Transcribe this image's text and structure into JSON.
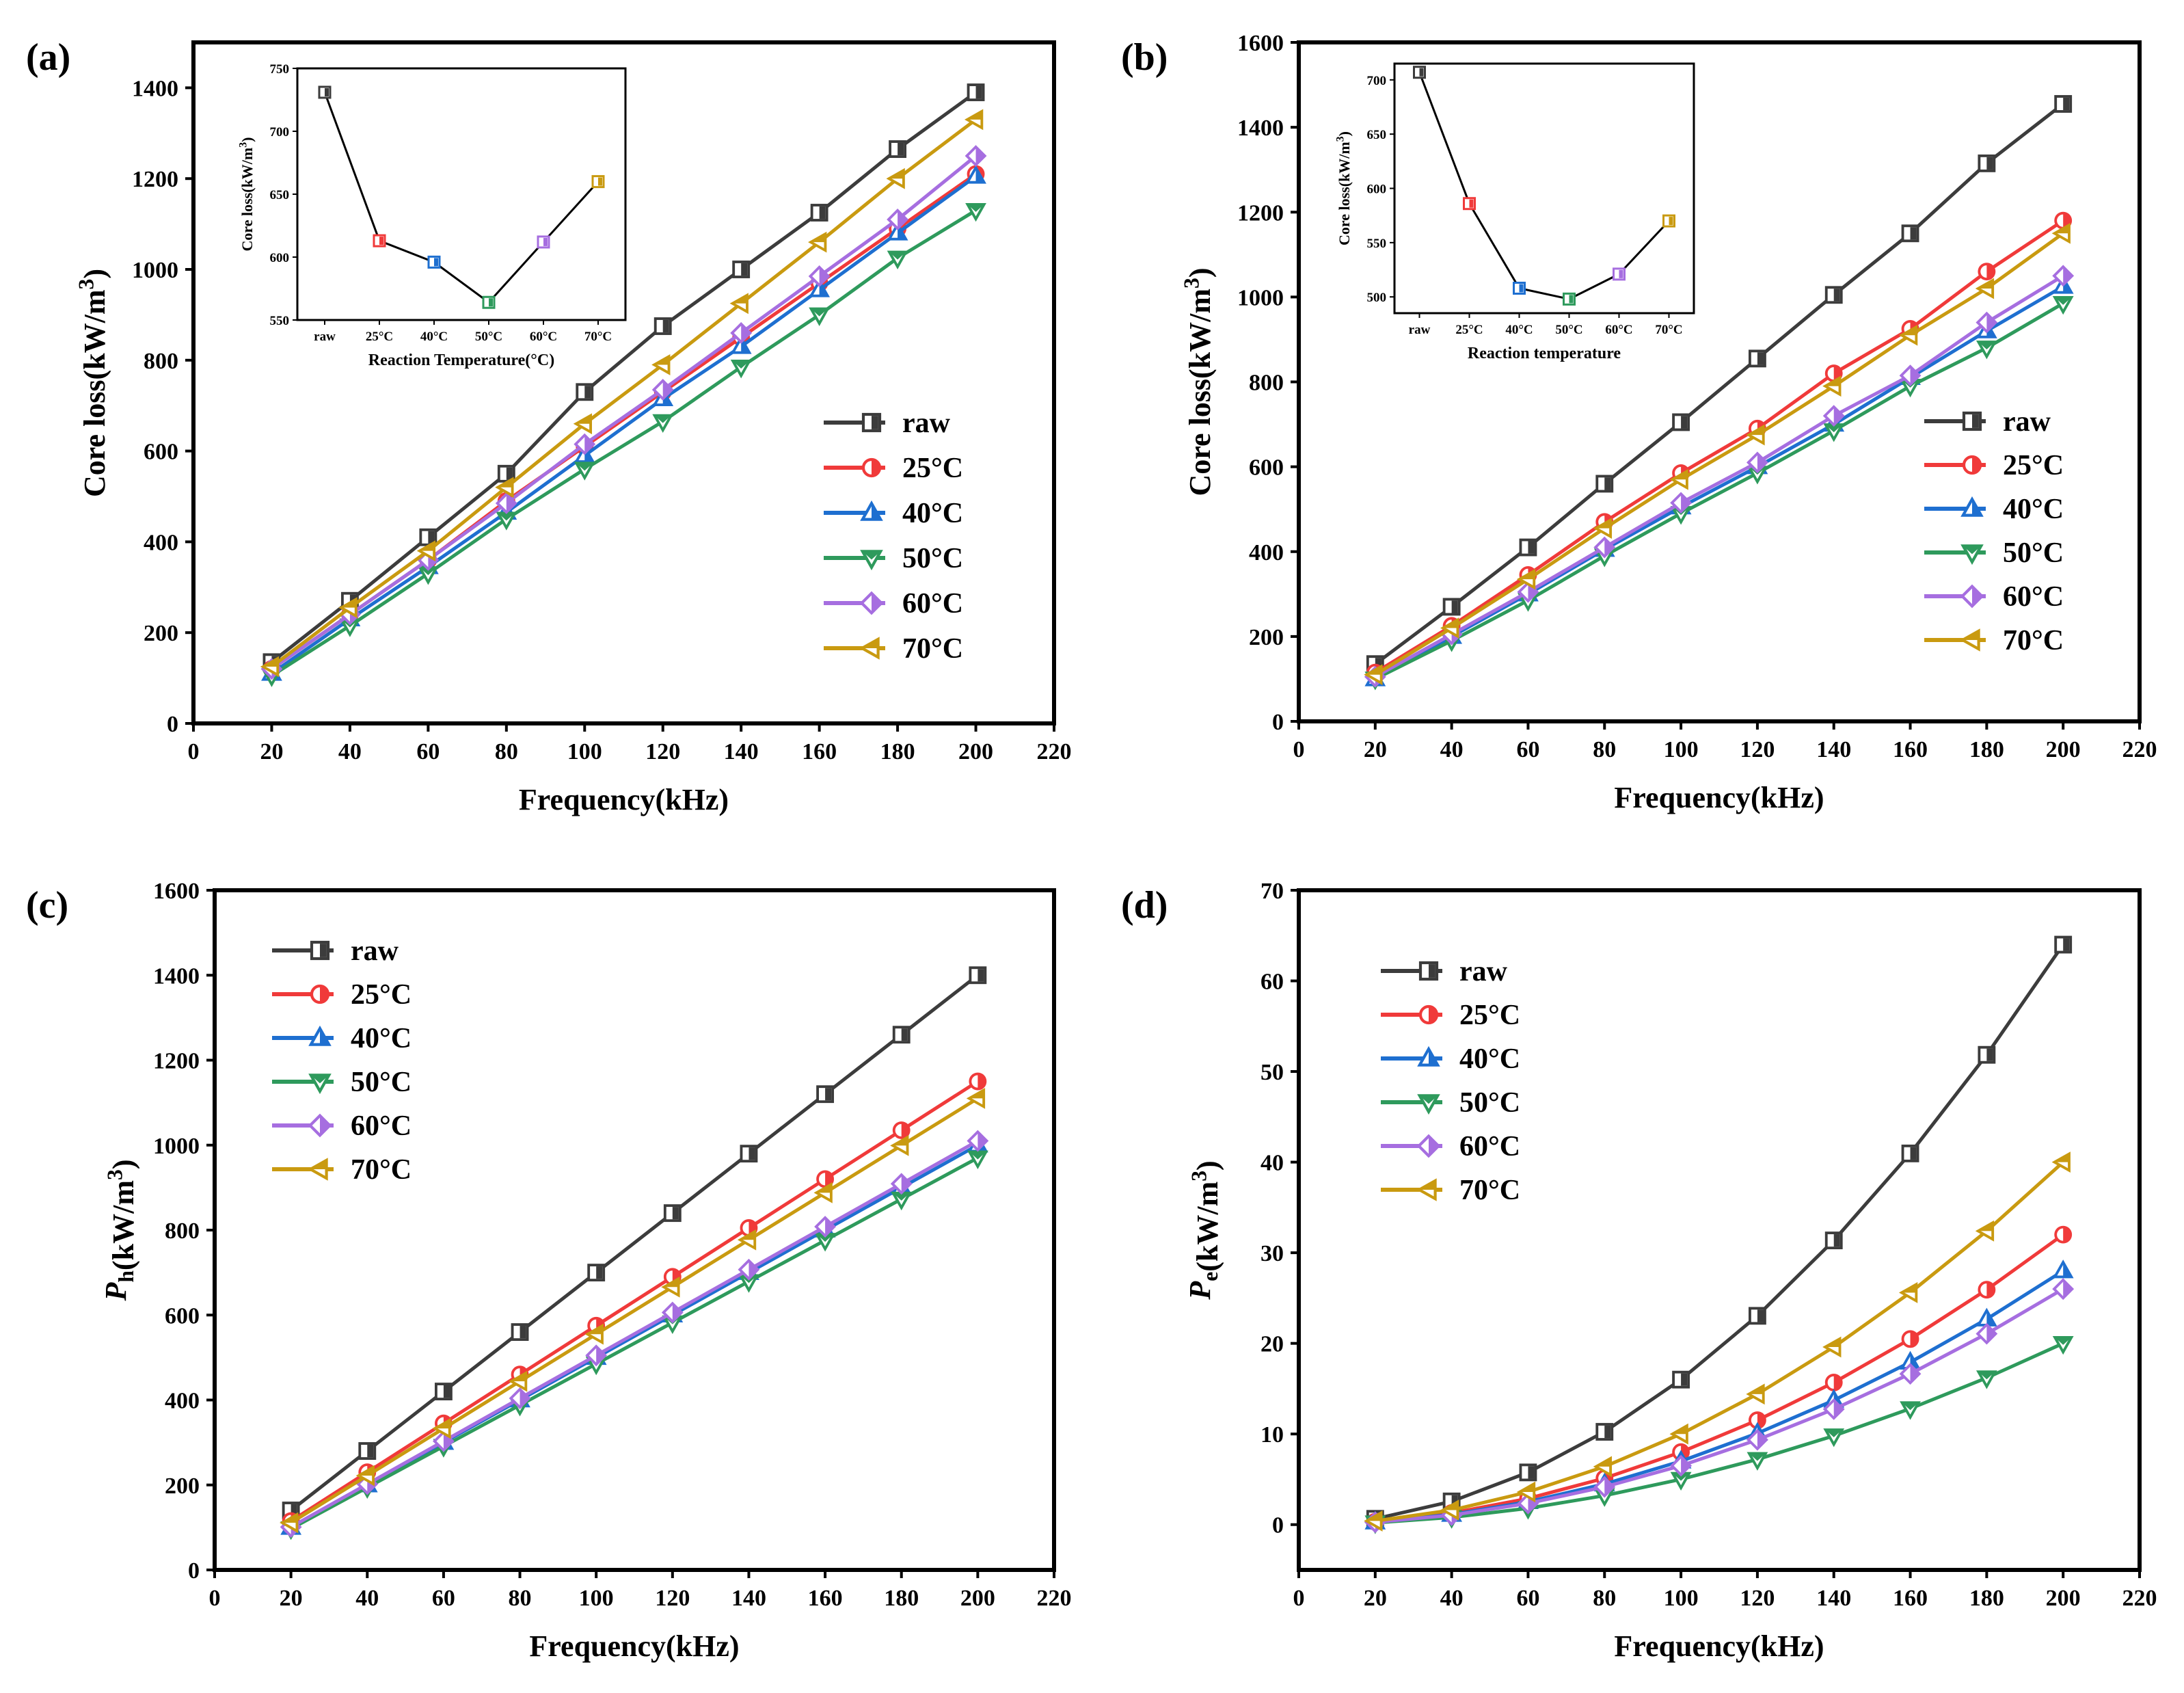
{
  "figure": {
    "series_styles": [
      {
        "name": "raw",
        "color": "#3c3c3c",
        "marker": "square"
      },
      {
        "name": "25°C",
        "color": "#f03a3a",
        "marker": "circle"
      },
      {
        "name": "40°C",
        "color": "#1e6fd0",
        "marker": "triangle-up"
      },
      {
        "name": "50°C",
        "color": "#2e9a5c",
        "marker": "triangle-down"
      },
      {
        "name": "60°C",
        "color": "#a66ee0",
        "marker": "diamond"
      },
      {
        "name": "70°C",
        "color": "#c99a10",
        "marker": "triangle-left"
      }
    ]
  },
  "chart_data": [
    {
      "panel_label": "(a)",
      "type": "line",
      "xlabel": "Frequency(kHz)",
      "ylabel": "Core loss(kW/m3)",
      "xlim": [
        0,
        220
      ],
      "ylim": [
        0,
        1500
      ],
      "x_ticks": [
        "0",
        "20",
        "40",
        "60",
        "80",
        "100",
        "120",
        "140",
        "160",
        "180",
        "200",
        "220"
      ],
      "y_ticks": [
        "0",
        "200",
        "400",
        "600",
        "800",
        "1000",
        "1200",
        "1400"
      ],
      "legend_position": "lower-right",
      "x": [
        20,
        40,
        60,
        80,
        100,
        120,
        140,
        160,
        180,
        200
      ],
      "series": [
        {
          "name": "raw",
          "values": [
            135,
            270,
            410,
            550,
            730,
            875,
            1000,
            1125,
            1265,
            1390
          ]
        },
        {
          "name": "25°C",
          "values": [
            120,
            240,
            360,
            490,
            610,
            730,
            850,
            970,
            1090,
            1210
          ]
        },
        {
          "name": "40°C",
          "values": [
            110,
            230,
            345,
            465,
            590,
            715,
            830,
            955,
            1080,
            1205
          ]
        },
        {
          "name": "50°C",
          "values": [
            105,
            215,
            330,
            450,
            560,
            665,
            785,
            900,
            1025,
            1130
          ]
        },
        {
          "name": "60°C",
          "values": [
            120,
            240,
            360,
            485,
            615,
            735,
            860,
            985,
            1110,
            1250
          ]
        },
        {
          "name": "70°C",
          "values": [
            125,
            255,
            380,
            520,
            660,
            790,
            925,
            1060,
            1200,
            1330
          ]
        }
      ],
      "inset": {
        "type": "line",
        "xlabel": "Reaction Temperature(°C)",
        "ylabel": "Core loss(kW/m3)",
        "categories": [
          "raw",
          "25°C",
          "40°C",
          "50°C",
          "60°C",
          "70°C"
        ],
        "values": [
          731,
          613,
          596,
          564,
          612,
          660
        ],
        "ylim": [
          550,
          750
        ],
        "y_ticks": [
          "550",
          "600",
          "650",
          "700",
          "750"
        ]
      }
    },
    {
      "panel_label": "(b)",
      "type": "line",
      "xlabel": "Frequency(kHz)",
      "ylabel": "Core loss(kW/m3)",
      "xlim": [
        0,
        220
      ],
      "ylim": [
        0,
        1600
      ],
      "x_ticks": [
        "0",
        "20",
        "40",
        "60",
        "80",
        "100",
        "120",
        "140",
        "160",
        "180",
        "200",
        "220"
      ],
      "y_ticks": [
        "0",
        "200",
        "400",
        "600",
        "800",
        "1000",
        "1200",
        "1400",
        "1600"
      ],
      "legend_position": "right",
      "x": [
        20,
        40,
        60,
        80,
        100,
        120,
        140,
        160,
        180,
        200
      ],
      "series": [
        {
          "name": "raw",
          "values": [
            135,
            270,
            410,
            560,
            705,
            855,
            1005,
            1150,
            1315,
            1455
          ]
        },
        {
          "name": "25°C",
          "values": [
            115,
            225,
            345,
            470,
            585,
            690,
            820,
            925,
            1060,
            1180
          ]
        },
        {
          "name": "40°C",
          "values": [
            100,
            200,
            300,
            405,
            505,
            600,
            700,
            810,
            920,
            1025
          ]
        },
        {
          "name": "50°C",
          "values": [
            100,
            190,
            285,
            390,
            490,
            585,
            685,
            790,
            880,
            985
          ]
        },
        {
          "name": "60°C",
          "values": [
            105,
            205,
            305,
            410,
            515,
            610,
            720,
            815,
            940,
            1050
          ]
        },
        {
          "name": "70°C",
          "values": [
            110,
            220,
            335,
            455,
            570,
            675,
            790,
            910,
            1020,
            1150
          ]
        }
      ],
      "inset": {
        "type": "line",
        "xlabel": "Reaction temperature",
        "ylabel": "Core loss(kW/m3)",
        "categories": [
          "raw",
          "25°C",
          "40°C",
          "50°C",
          "60°C",
          "70°C"
        ],
        "values": [
          707,
          586,
          508,
          498,
          521,
          570
        ],
        "ylim": [
          485,
          715
        ],
        "y_ticks": [
          "500",
          "550",
          "600",
          "650",
          "700"
        ]
      }
    },
    {
      "panel_label": "(c)",
      "type": "line",
      "xlabel": "Frequency(kHz)",
      "ylabel": "Ph(kW/m3)",
      "xlim": [
        0,
        220
      ],
      "ylim": [
        0,
        1600
      ],
      "x_ticks": [
        "0",
        "20",
        "40",
        "60",
        "80",
        "100",
        "120",
        "140",
        "160",
        "180",
        "200",
        "220"
      ],
      "y_ticks": [
        "0",
        "200",
        "400",
        "600",
        "800",
        "1000",
        "1200",
        "1400",
        "1600"
      ],
      "legend_position": "top-left",
      "x": [
        20,
        40,
        60,
        80,
        100,
        120,
        140,
        160,
        180,
        200
      ],
      "series": [
        {
          "name": "raw",
          "values": [
            140,
            280,
            420,
            560,
            700,
            840,
            980,
            1120,
            1260,
            1400
          ]
        },
        {
          "name": "25°C",
          "values": [
            115,
            230,
            345,
            460,
            575,
            690,
            805,
            920,
            1035,
            1150
          ]
        },
        {
          "name": "40°C",
          "values": [
            100,
            200,
            300,
            400,
            500,
            600,
            700,
            800,
            900,
            1000
          ]
        },
        {
          "name": "50°C",
          "values": [
            97,
            194,
            291,
            388,
            485,
            582,
            679,
            776,
            873,
            970
          ]
        },
        {
          "name": "60°C",
          "values": [
            101,
            202,
            303,
            404,
            505,
            606,
            707,
            808,
            909,
            1010
          ]
        },
        {
          "name": "70°C",
          "values": [
            111,
            222,
            333,
            444,
            555,
            666,
            777,
            888,
            999,
            1110
          ]
        }
      ]
    },
    {
      "panel_label": "(d)",
      "type": "line",
      "xlabel": "Frequency(kHz)",
      "ylabel": "Pe(kW/m3)",
      "xlim": [
        0,
        220
      ],
      "ylim": [
        -5,
        70
      ],
      "x_ticks": [
        "0",
        "20",
        "40",
        "60",
        "80",
        "100",
        "120",
        "140",
        "160",
        "180",
        "200",
        "220"
      ],
      "y_ticks": [
        "0",
        "10",
        "20",
        "30",
        "40",
        "50",
        "60",
        "70"
      ],
      "legend_position": "top-left",
      "x": [
        20,
        40,
        60,
        80,
        100,
        120,
        140,
        160,
        180,
        200
      ],
      "series": [
        {
          "name": "raw",
          "values": [
            0.64,
            2.56,
            5.76,
            10.24,
            16.0,
            23.04,
            31.36,
            40.96,
            51.84,
            64.0
          ]
        },
        {
          "name": "25°C",
          "values": [
            0.32,
            1.28,
            2.88,
            5.12,
            8.0,
            11.52,
            15.68,
            20.48,
            25.92,
            32.0
          ]
        },
        {
          "name": "40°C",
          "values": [
            0.28,
            1.12,
            2.52,
            4.48,
            7.0,
            10.08,
            13.72,
            17.92,
            22.68,
            28.0
          ]
        },
        {
          "name": "50°C",
          "values": [
            0.2,
            0.8,
            1.8,
            3.2,
            5.0,
            7.2,
            9.8,
            12.8,
            16.2,
            20.0
          ]
        },
        {
          "name": "60°C",
          "values": [
            0.26,
            1.04,
            2.34,
            4.16,
            6.5,
            9.36,
            12.74,
            16.64,
            21.06,
            26.0
          ]
        },
        {
          "name": "70°C",
          "values": [
            0.4,
            1.6,
            3.6,
            6.4,
            10.0,
            14.4,
            19.6,
            25.6,
            32.4,
            40.0
          ]
        }
      ]
    }
  ]
}
